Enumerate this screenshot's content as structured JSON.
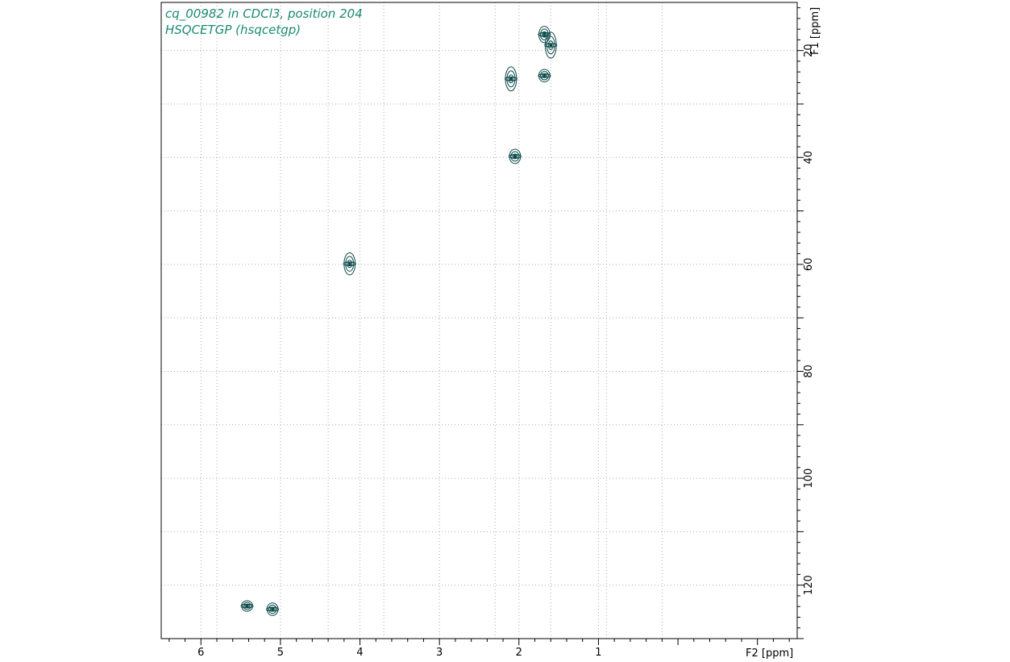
{
  "chart_data": {
    "type": "scatter",
    "subtype": "2D NMR HSQC contour plot",
    "title_lines": [
      "cq_00982 in CDCl3, position 204",
      "HSQCETGP (hsqcetgp)"
    ],
    "title_color": "#1a8a74",
    "contour_color": "#0d4a4a",
    "x_axis": {
      "label": "F2 [ppm]",
      "range": [
        6.5,
        -1.5
      ],
      "reversed": true,
      "ticks": [
        "6",
        "5",
        "4",
        "3",
        "2",
        "1"
      ],
      "tick_values": [
        6,
        5,
        4,
        3,
        2,
        1
      ],
      "grid_values": [
        5.8,
        4.4,
        3.7,
        2.3,
        1.6,
        0.9,
        0.2
      ]
    },
    "y_axis": {
      "label": "F1 [ppm]",
      "range": [
        11,
        130
      ],
      "reversed": true,
      "position": "right",
      "ticks": [
        "20",
        "40",
        "60",
        "80",
        "100",
        "120"
      ],
      "tick_values": [
        20,
        40,
        60,
        80,
        100,
        120
      ],
      "grid_values": [
        20,
        30,
        40,
        50,
        60,
        70,
        80,
        90,
        100,
        110,
        120
      ]
    },
    "grid": "dotted",
    "peaks": [
      {
        "x": 1.68,
        "y": 17.0,
        "spread": 1.2
      },
      {
        "x": 1.6,
        "y": 19.0,
        "spread": 2.2
      },
      {
        "x": 1.68,
        "y": 24.7,
        "spread": 0.8
      },
      {
        "x": 2.1,
        "y": 25.3,
        "spread": 2.0
      },
      {
        "x": 2.05,
        "y": 39.8,
        "spread": 1.0
      },
      {
        "x": 4.13,
        "y": 59.9,
        "spread": 1.8
      },
      {
        "x": 5.42,
        "y": 123.9,
        "spread": 0.6
      },
      {
        "x": 5.1,
        "y": 124.5,
        "spread": 0.8
      }
    ]
  }
}
